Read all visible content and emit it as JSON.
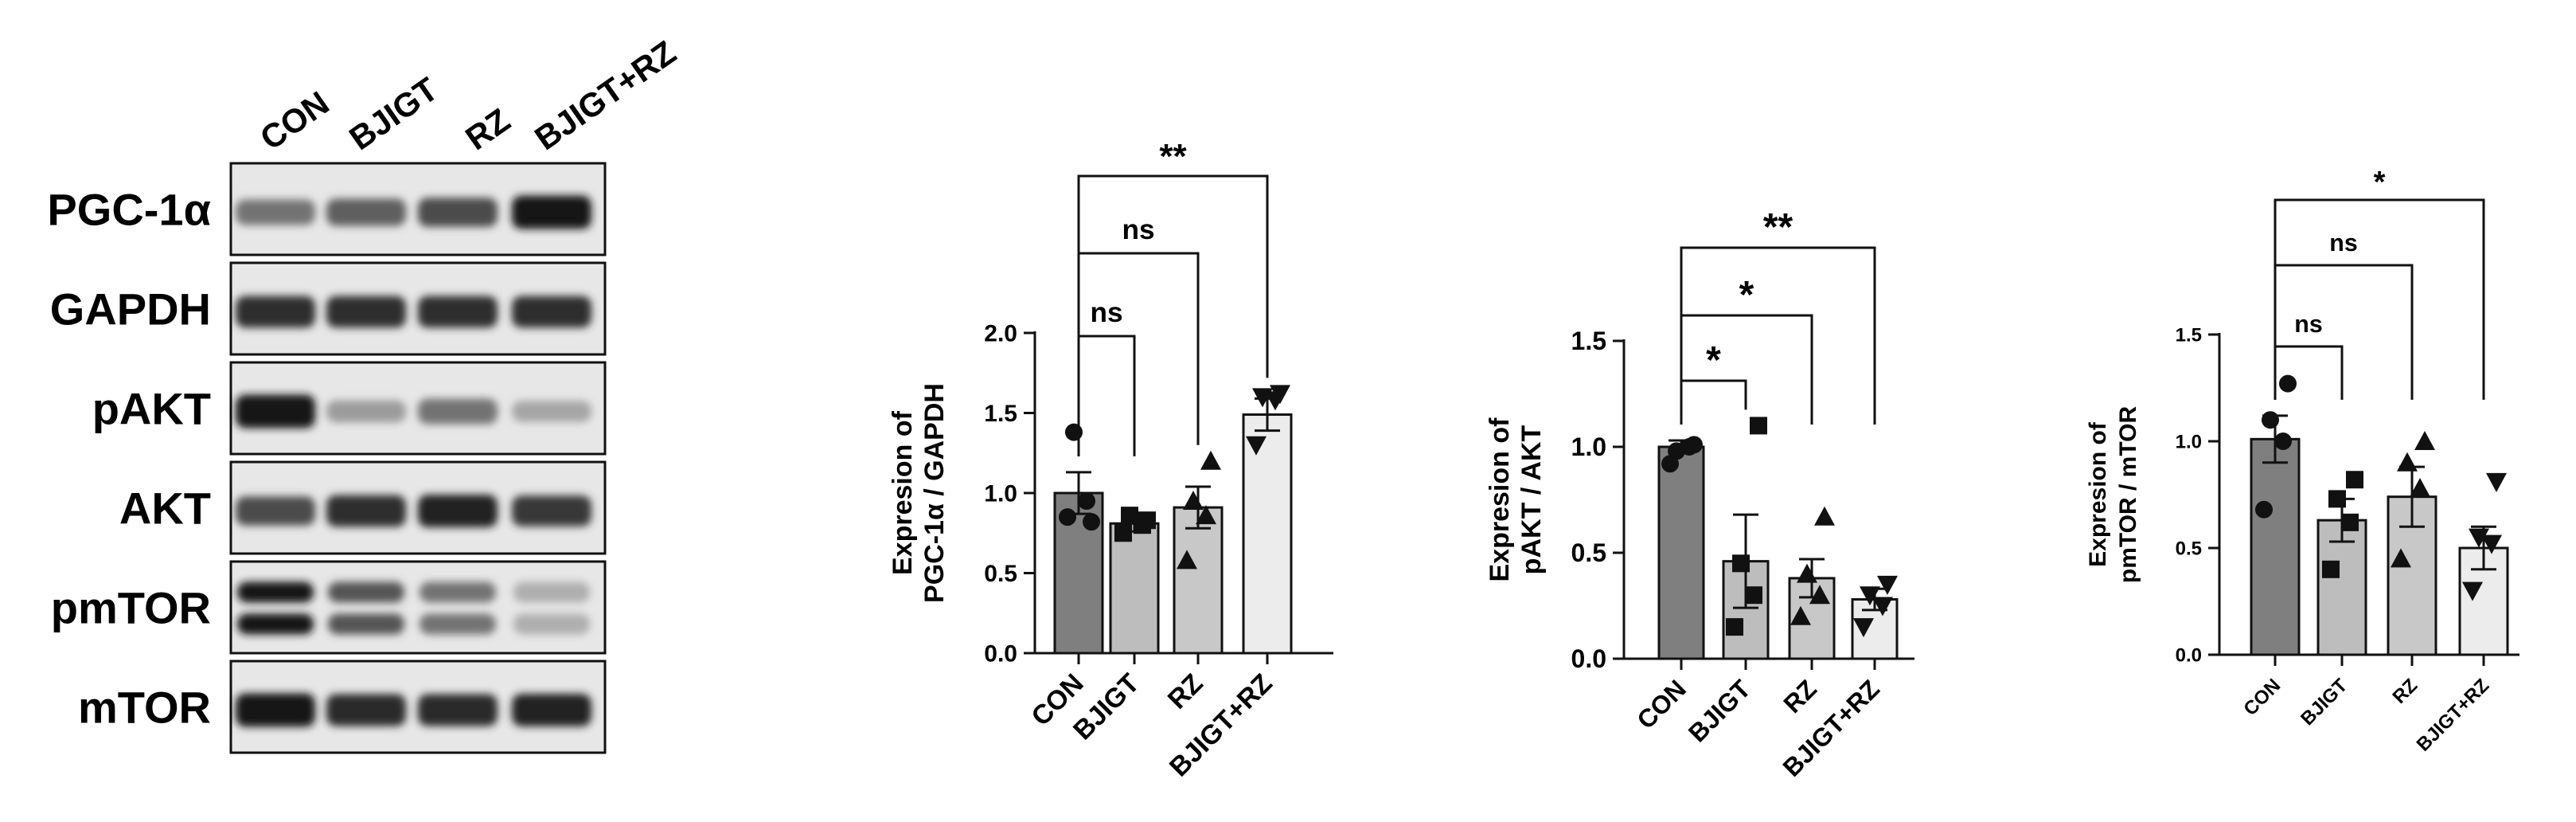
{
  "blot": {
    "lanes": [
      "CON",
      "BJIGT",
      "RZ",
      "BJIGT+RZ"
    ],
    "rows": [
      {
        "label": "PGC-1α",
        "band_intensity": [
          0.55,
          0.65,
          0.75,
          1.0
        ],
        "doublet": false
      },
      {
        "label": "GAPDH",
        "band_intensity": [
          0.9,
          0.9,
          0.9,
          0.9
        ],
        "doublet": false
      },
      {
        "label": "pAKT",
        "band_intensity": [
          1.0,
          0.35,
          0.55,
          0.3
        ],
        "doublet": false
      },
      {
        "label": "AKT",
        "band_intensity": [
          0.75,
          0.9,
          0.95,
          0.85
        ],
        "doublet": false
      },
      {
        "label": "pmTOR",
        "band_intensity": [
          1.0,
          0.7,
          0.55,
          0.25
        ],
        "doublet": true
      },
      {
        "label": "mTOR",
        "band_intensity": [
          1.0,
          0.92,
          0.92,
          0.95
        ],
        "doublet": false
      }
    ]
  },
  "chart_data": [
    {
      "type": "bar",
      "categories": [
        "CON",
        "BJIGT",
        "RZ",
        "BJIGT+RZ"
      ],
      "values": [
        1.0,
        0.81,
        0.91,
        1.49
      ],
      "errors": [
        0.13,
        0.05,
        0.13,
        0.1
      ],
      "points": [
        [
          0.85,
          0.95,
          1.38,
          0.82
        ],
        [
          0.75,
          0.8,
          0.86,
          0.83
        ],
        [
          0.58,
          0.86,
          0.95,
          1.2
        ],
        [
          1.3,
          1.58,
          1.6,
          1.62
        ]
      ],
      "markers": [
        "circle",
        "square",
        "triangle-up",
        "triangle-down"
      ],
      "bar_colors": [
        "#7f7f7f",
        "#bdbdbd",
        "#c8c8c8",
        "#ececec"
      ],
      "ylim": [
        0,
        2.0
      ],
      "yticks": [
        "0.0",
        "0.5",
        "1.0",
        "1.5",
        "2.0"
      ],
      "ylabel_lines": [
        "Expresion of",
        "PGC-1α / GAPDH"
      ],
      "xlabel": "",
      "comparisons": [
        {
          "from": 0,
          "to": 1,
          "label": "ns"
        },
        {
          "from": 0,
          "to": 2,
          "label": "ns"
        },
        {
          "from": 0,
          "to": 3,
          "label": "**"
        }
      ]
    },
    {
      "type": "bar",
      "categories": [
        "CON",
        "BJIGT",
        "RZ",
        "BJIGT+RZ"
      ],
      "values": [
        1.0,
        0.46,
        0.38,
        0.28
      ],
      "errors": [
        0.03,
        0.22,
        0.09,
        0.05
      ],
      "points": [
        [
          0.92,
          1.0,
          0.98,
          1.01
        ],
        [
          0.15,
          0.3,
          0.45,
          1.1
        ],
        [
          0.2,
          0.3,
          0.4,
          0.67
        ],
        [
          0.15,
          0.25,
          0.3,
          0.35
        ]
      ],
      "markers": [
        "circle",
        "square",
        "triangle-up",
        "triangle-down"
      ],
      "bar_colors": [
        "#7f7f7f",
        "#bdbdbd",
        "#c8c8c8",
        "#ececec"
      ],
      "ylim": [
        0,
        1.5
      ],
      "yticks": [
        "0.0",
        "0.5",
        "1.0",
        "1.5"
      ],
      "ylabel_lines": [
        "Expresion of",
        "pAKT / AKT"
      ],
      "xlabel": "",
      "comparisons": [
        {
          "from": 0,
          "to": 1,
          "label": "*"
        },
        {
          "from": 0,
          "to": 2,
          "label": "*"
        },
        {
          "from": 0,
          "to": 3,
          "label": "**"
        }
      ]
    },
    {
      "type": "bar",
      "categories": [
        "CON",
        "BJIGT",
        "RZ",
        "BJIGT+RZ"
      ],
      "values": [
        1.01,
        0.63,
        0.74,
        0.5
      ],
      "errors": [
        0.11,
        0.1,
        0.14,
        0.1
      ],
      "points": [
        [
          0.68,
          1.0,
          1.1,
          1.27
        ],
        [
          0.4,
          0.62,
          0.73,
          0.82
        ],
        [
          0.45,
          0.78,
          0.9,
          1.0
        ],
        [
          0.3,
          0.52,
          0.55,
          0.81
        ]
      ],
      "markers": [
        "circle",
        "square",
        "triangle-up",
        "triangle-down"
      ],
      "bar_colors": [
        "#7f7f7f",
        "#bdbdbd",
        "#c8c8c8",
        "#ececec"
      ],
      "ylim": [
        0,
        1.5
      ],
      "yticks": [
        "0.0",
        "0.5",
        "1.0",
        "1.5"
      ],
      "ylabel_lines": [
        "Expresion of",
        "pmTOR / mTOR"
      ],
      "xlabel": "",
      "comparisons": [
        {
          "from": 0,
          "to": 1,
          "label": "ns"
        },
        {
          "from": 0,
          "to": 2,
          "label": "ns"
        },
        {
          "from": 0,
          "to": 3,
          "label": "*"
        }
      ]
    }
  ]
}
